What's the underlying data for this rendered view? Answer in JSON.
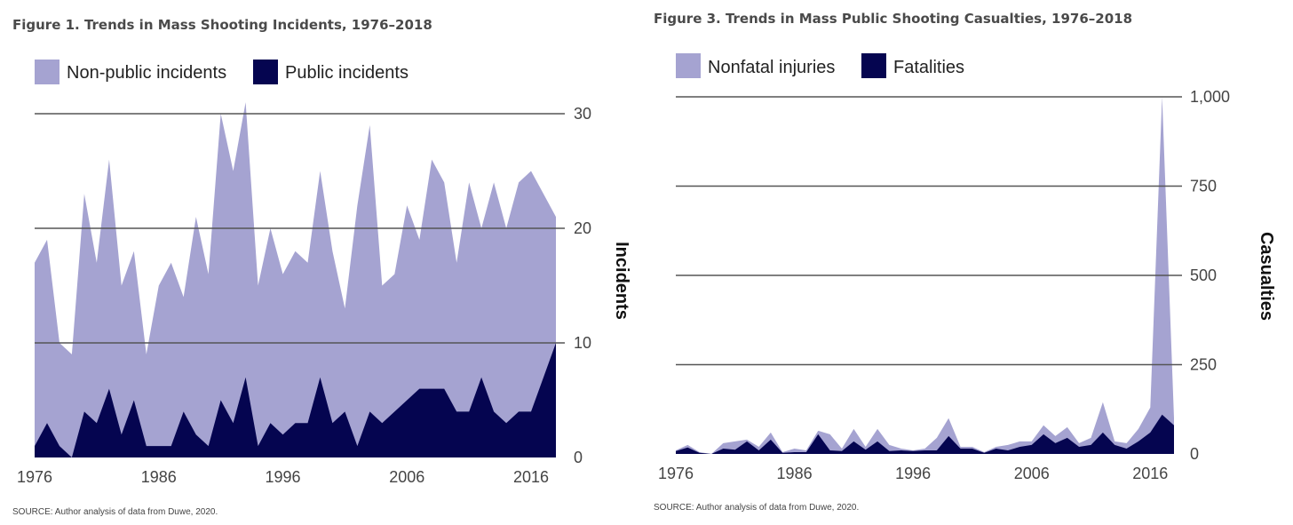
{
  "chart_data": [
    {
      "type": "area",
      "title": "Figure 1. Trends in Mass Shooting Incidents, 1976–2018",
      "ylabel": "Incidents",
      "xlabel": "",
      "x": [
        1976,
        1977,
        1978,
        1979,
        1980,
        1981,
        1982,
        1983,
        1984,
        1985,
        1986,
        1987,
        1988,
        1989,
        1990,
        1991,
        1992,
        1993,
        1994,
        1995,
        1996,
        1997,
        1998,
        1999,
        2000,
        2001,
        2002,
        2003,
        2004,
        2005,
        2006,
        2007,
        2008,
        2009,
        2010,
        2011,
        2012,
        2013,
        2014,
        2015,
        2016,
        2017,
        2018
      ],
      "x_ticks": [
        "1976",
        "1986",
        "1996",
        "2006",
        "2016"
      ],
      "y_ticks": [
        "0",
        "10",
        "20",
        "30"
      ],
      "ylim": [
        0,
        30
      ],
      "stacked": false,
      "series": [
        {
          "name": "Non-public incidents",
          "color": "#a5a3d1",
          "values": [
            17,
            19,
            10,
            9,
            23,
            17,
            26,
            15,
            18,
            9,
            15,
            17,
            14,
            21,
            16,
            30,
            25,
            31,
            15,
            20,
            16,
            18,
            17,
            25,
            18,
            13,
            22,
            29,
            15,
            16,
            22,
            19,
            26,
            24,
            17,
            24,
            20,
            24,
            20,
            24,
            25,
            23,
            21
          ]
        },
        {
          "name": "Public incidents",
          "color": "#050550",
          "values": [
            1,
            3,
            1,
            0,
            4,
            3,
            6,
            2,
            5,
            1,
            1,
            1,
            4,
            2,
            1,
            5,
            3,
            7,
            1,
            3,
            2,
            3,
            3,
            7,
            3,
            4,
            1,
            4,
            3,
            4,
            5,
            6,
            6,
            6,
            4,
            4,
            7,
            4,
            3,
            4,
            4,
            7,
            10
          ]
        }
      ],
      "source": "SOURCE: Author analysis of data from Duwe, 2020."
    },
    {
      "type": "area",
      "title": "Figure 3. Trends in Mass Public Shooting Casualties, 1976–2018",
      "ylabel": "Casualties",
      "xlabel": "",
      "x": [
        1976,
        1977,
        1978,
        1979,
        1980,
        1981,
        1982,
        1983,
        1984,
        1985,
        1986,
        1987,
        1988,
        1989,
        1990,
        1991,
        1992,
        1993,
        1994,
        1995,
        1996,
        1997,
        1998,
        1999,
        2000,
        2001,
        2002,
        2003,
        2004,
        2005,
        2006,
        2007,
        2008,
        2009,
        2010,
        2011,
        2012,
        2013,
        2014,
        2015,
        2016,
        2017,
        2018
      ],
      "x_ticks": [
        "1976",
        "1986",
        "1996",
        "2006",
        "2016"
      ],
      "y_ticks": [
        "0",
        "250",
        "500",
        "750",
        "1,000"
      ],
      "ylim": [
        0,
        1000
      ],
      "stacked": false,
      "series": [
        {
          "name": "Nonfatal injuries",
          "color": "#a5a3d1",
          "values": [
            10,
            25,
            5,
            0,
            30,
            35,
            40,
            20,
            60,
            5,
            15,
            10,
            65,
            55,
            15,
            70,
            20,
            70,
            25,
            15,
            10,
            15,
            45,
            100,
            20,
            20,
            5,
            20,
            25,
            35,
            35,
            80,
            50,
            75,
            30,
            45,
            145,
            35,
            30,
            70,
            130,
            1000,
            100
          ]
        },
        {
          "name": "Fatalities",
          "color": "#050550",
          "values": [
            8,
            18,
            3,
            0,
            15,
            12,
            35,
            10,
            40,
            3,
            5,
            5,
            55,
            10,
            8,
            35,
            12,
            35,
            8,
            10,
            8,
            10,
            10,
            50,
            15,
            15,
            3,
            15,
            10,
            20,
            25,
            55,
            30,
            45,
            20,
            25,
            60,
            25,
            15,
            35,
            60,
            110,
            80
          ]
        }
      ],
      "source": "SOURCE: Author analysis of data from Duwe, 2020."
    }
  ]
}
